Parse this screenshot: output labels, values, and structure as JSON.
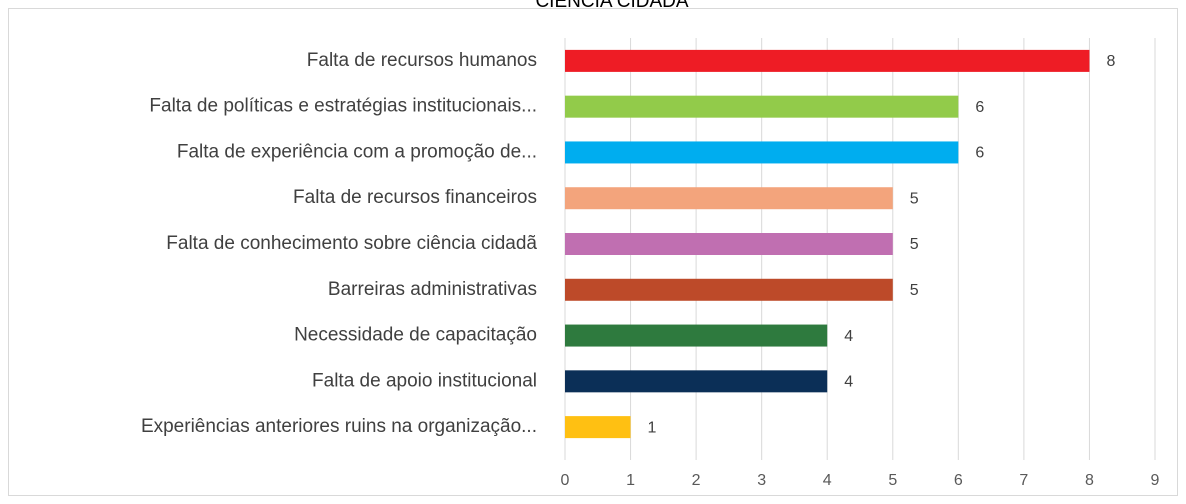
{
  "chart_data": {
    "type": "bar",
    "orientation": "horizontal",
    "title": "CIÊNCIA CIDADÃ",
    "categories": [
      "Falta de recursos humanos",
      "Falta de políticas e estratégias institucionais...",
      "Falta de experiência com a promoção de...",
      "Falta de recursos financeiros",
      "Falta de conhecimento sobre ciência cidadã",
      "Barreiras administrativas",
      "Necessidade de capacitação",
      "Falta de apoio institucional",
      "Experiências anteriores ruins na organização..."
    ],
    "values": [
      8,
      6,
      6,
      5,
      5,
      5,
      4,
      4,
      1
    ],
    "colors": [
      "#ee1c25",
      "#92cb4a",
      "#00adef",
      "#f3a47c",
      "#c06fb1",
      "#bd4a29",
      "#2e7a3e",
      "#0b2f57",
      "#ffc012"
    ],
    "xlim": [
      0,
      9
    ],
    "xticks": [
      0,
      1,
      2,
      3,
      4,
      5,
      6,
      7,
      8,
      9
    ],
    "grid": true
  }
}
